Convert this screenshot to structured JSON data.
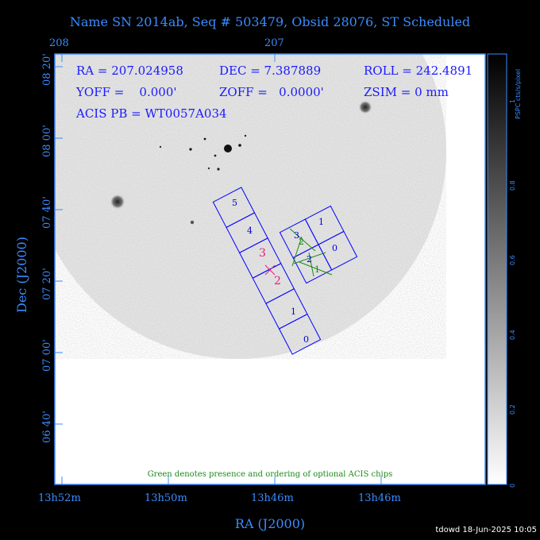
{
  "title": "Name SN 2014ab, Seq # 503479, Obsid 28076, ST Scheduled",
  "info": {
    "ra": "RA = 207.024958",
    "dec": "DEC = 7.387889",
    "roll": "ROLL = 242.4891",
    "yoff": "YOFF =    0.000'",
    "zoff": "ZOFF =   0.0000'",
    "zsim": "ZSIM = 0 mm",
    "acis_pb": "ACIS PB = WT0057A034"
  },
  "top_ticks": [
    "208",
    "207"
  ],
  "left_ticks": [
    "08 20'",
    "08 00'",
    "07 40'",
    "07 20'",
    "07 00'",
    "06 40'"
  ],
  "bottom_ticks": [
    "13h52m",
    "13h50m",
    "13h46m",
    "13h46m"
  ],
  "xlabel": "RA (J2000)",
  "ylabel": "Dec (J2000)",
  "note": "Green denotes presence and ordering of optional ACIS chips",
  "colorbar": {
    "label": "PSPC cts/s/pixel",
    "ticks": [
      "0",
      "0.2",
      "0.4",
      "0.6",
      "0.8",
      "1"
    ]
  },
  "chips_s": [
    "5",
    "4",
    "3",
    "2",
    "1",
    "0"
  ],
  "chips_i": [
    "1",
    "0",
    "3",
    "2"
  ],
  "optional": [
    "2",
    "3",
    "2",
    "1"
  ],
  "footer": "tdowd 18-Jun-2025 10:05",
  "colors": {
    "axes": "#3a8cff",
    "chips": "#0000ff",
    "optional": "#1a8a1a",
    "aimpoint": "#e0207a"
  }
}
